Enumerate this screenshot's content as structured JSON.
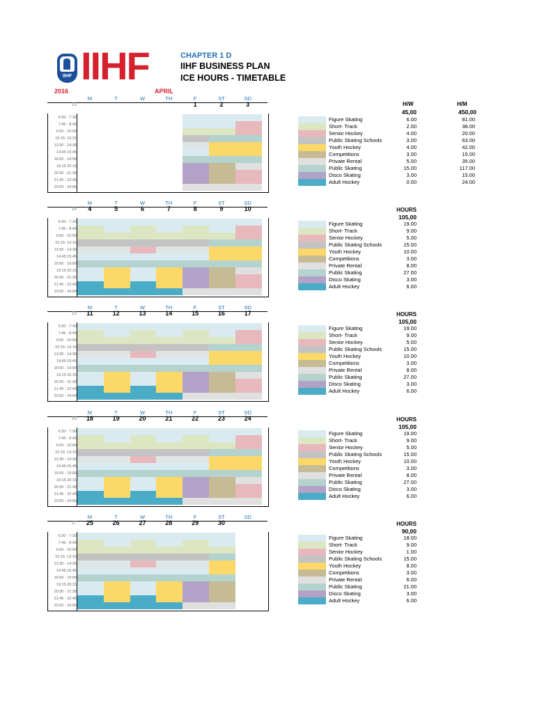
{
  "header": {
    "logo_text": "IIHF",
    "logo_seal_text": "IIHF",
    "chapter": "CHAPTER 1 D",
    "title_line1": "IIHF BUSINESS PLAN",
    "title_line2": "ICE HOURS - TIMETABLE",
    "year": "2016",
    "month": "APRIL"
  },
  "day_headers": [
    "M",
    "T",
    "W",
    "TH",
    "F",
    "ST",
    "SD"
  ],
  "time_slots": [
    "6:30 - 7:30",
    "7:45 - 8:45",
    "9:00 - 10:00",
    "10:15- 13:15",
    "13:30 - 14:30",
    "14:45:15:45",
    "16:00 - 19:00",
    "19:15 20:15",
    "20:30 - 21:30",
    "21:45 - 22:45",
    "23:00 - 24:00"
  ],
  "colors": {
    "FS": "#d9ebf1",
    "ST": "#dde6c2",
    "SH": "#e8b9bc",
    "PSS": "#c3c3c3",
    "YH": "#fcd868",
    "CO": "#c7bb95",
    "PR": "#e0e0e0",
    "PS": "#b4d2ce",
    "DS": "#b3a2c8",
    "AH": "#4aacc6",
    "ALT": "#dfe4e4"
  },
  "legend": [
    {
      "key": "FS",
      "name": "Figure Skating"
    },
    {
      "key": "ST",
      "name": "Short- Track"
    },
    {
      "key": "SH",
      "name": "Senior Hockey"
    },
    {
      "key": "PSS",
      "name": "Public Skating Schools"
    },
    {
      "key": "YH",
      "name": "Youth Hockey"
    },
    {
      "key": "CO",
      "name": "Competitions"
    },
    {
      "key": "PR",
      "name": "Private Rental"
    },
    {
      "key": "PS",
      "name": "Public Skating"
    },
    {
      "key": "DS",
      "name": "Disco Skating"
    },
    {
      "key": "AH",
      "name": "Adult Hockey"
    }
  ],
  "weeks": [
    {
      "week_no": "13",
      "days": [
        "",
        "",
        "",
        "",
        "1",
        "2",
        "3"
      ],
      "show_dow": false,
      "summary_label1": "H/W",
      "summary_label2": "H/M",
      "summary_value1": "45,00",
      "summary_value2": "450,00",
      "hours": [
        "6.00",
        "2.00",
        "4.00",
        "3.00",
        "4.00",
        "3.00",
        "5.00",
        "15.00",
        "3.00",
        "0.00"
      ],
      "hours_month": [
        "81.00",
        "38.00",
        "20.00",
        "63.00",
        "42.00",
        "15.00",
        "35.00",
        "117.00",
        "15.00",
        "24.00"
      ],
      "rows": [
        [
          "",
          "",
          "",
          "",
          "FS",
          "FS",
          "FS"
        ],
        [
          "",
          "",
          "",
          "",
          "FS",
          "FS",
          "SH"
        ],
        [
          "",
          "",
          "",
          "",
          "ST",
          "ST",
          "SH"
        ],
        [
          "",
          "",
          "",
          "",
          "PSS",
          "PS",
          "PS"
        ],
        [
          "",
          "",
          "",
          "",
          "ALT",
          "YH",
          "YH"
        ],
        [
          "",
          "",
          "",
          "",
          "FS",
          "YH",
          "YH"
        ],
        [
          "",
          "",
          "",
          "",
          "PS",
          "PS",
          "PS"
        ],
        [
          "",
          "",
          "",
          "",
          "DS",
          "CO",
          "PR"
        ],
        [
          "",
          "",
          "",
          "",
          "DS",
          "CO",
          "SH"
        ],
        [
          "",
          "",
          "",
          "",
          "DS",
          "CO",
          "SH"
        ],
        [
          "",
          "",
          "",
          "",
          "PR",
          "PR",
          "PR"
        ]
      ]
    },
    {
      "week_no": "14",
      "days": [
        "4",
        "5",
        "6",
        "7",
        "8",
        "9",
        "10"
      ],
      "show_dow": true,
      "summary_label1": "HOURS",
      "summary_value1": "105,00",
      "hours": [
        "19.00",
        "9.00",
        "5.00",
        "15.00",
        "10.00",
        "3.00",
        "8.00",
        "27.00",
        "3.00",
        "6.00"
      ],
      "rows": [
        [
          "FS",
          "FS",
          "FS",
          "FS",
          "FS",
          "FS",
          "FS"
        ],
        [
          "ST",
          "FS",
          "ST",
          "FS",
          "ST",
          "FS",
          "SH"
        ],
        [
          "ST",
          "ST",
          "ST",
          "ST",
          "ST",
          "ST",
          "SH"
        ],
        [
          "PSS",
          "PSS",
          "PSS",
          "PSS",
          "PSS",
          "PS",
          "PS"
        ],
        [
          "ALT",
          "ALT",
          "SH",
          "ALT",
          "ALT",
          "YH",
          "YH"
        ],
        [
          "FS",
          "FS",
          "FS",
          "FS",
          "FS",
          "YH",
          "YH"
        ],
        [
          "PS",
          "PS",
          "PS",
          "PS",
          "PS",
          "PS",
          "PS"
        ],
        [
          "FS",
          "YH",
          "FS",
          "YH",
          "DS",
          "CO",
          "PR"
        ],
        [
          "FS",
          "YH",
          "FS",
          "YH",
          "DS",
          "CO",
          "SH"
        ],
        [
          "AH",
          "YH",
          "AH",
          "YH",
          "DS",
          "CO",
          "SH"
        ],
        [
          "AH",
          "AH",
          "AH",
          "AH",
          "PR",
          "PR",
          "PR"
        ]
      ]
    },
    {
      "week_no": "15",
      "days": [
        "11",
        "12",
        "13",
        "14",
        "15",
        "16",
        "17"
      ],
      "show_dow": true,
      "summary_label1": "HOURS",
      "summary_value1": "105,00",
      "hours": [
        "19.00",
        "9.00",
        "5.00",
        "15.00",
        "10.00",
        "3.00",
        "8.00",
        "27.00",
        "3.00",
        "6.00"
      ],
      "rows": [
        [
          "FS",
          "FS",
          "FS",
          "FS",
          "FS",
          "FS",
          "FS"
        ],
        [
          "ST",
          "FS",
          "ST",
          "FS",
          "ST",
          "FS",
          "SH"
        ],
        [
          "ST",
          "ST",
          "ST",
          "ST",
          "ST",
          "ST",
          "SH"
        ],
        [
          "PSS",
          "PSS",
          "PSS",
          "PSS",
          "PSS",
          "PS",
          "PS"
        ],
        [
          "ALT",
          "ALT",
          "SH",
          "ALT",
          "ALT",
          "YH",
          "YH"
        ],
        [
          "FS",
          "FS",
          "FS",
          "FS",
          "FS",
          "YH",
          "YH"
        ],
        [
          "PS",
          "PS",
          "PS",
          "PS",
          "PS",
          "PS",
          "PS"
        ],
        [
          "FS",
          "YH",
          "FS",
          "YH",
          "DS",
          "CO",
          "PR"
        ],
        [
          "FS",
          "YH",
          "FS",
          "YH",
          "DS",
          "CO",
          "SH"
        ],
        [
          "AH",
          "YH",
          "AH",
          "YH",
          "DS",
          "CO",
          "SH"
        ],
        [
          "AH",
          "AH",
          "AH",
          "AH",
          "PR",
          "PR",
          "PR"
        ]
      ]
    },
    {
      "week_no": "16",
      "days": [
        "18",
        "19",
        "20",
        "21",
        "22",
        "23",
        "24"
      ],
      "show_dow": true,
      "summary_label1": "HOURS",
      "summary_value1": "105,00",
      "hours": [
        "19.00",
        "9.00",
        "5.00",
        "15.00",
        "10.00",
        "3.00",
        "8.00",
        "27.00",
        "3.00",
        "6.00"
      ],
      "rows": [
        [
          "FS",
          "FS",
          "FS",
          "FS",
          "FS",
          "FS",
          "FS"
        ],
        [
          "ST",
          "FS",
          "ST",
          "FS",
          "ST",
          "FS",
          "SH"
        ],
        [
          "ST",
          "ST",
          "ST",
          "ST",
          "ST",
          "ST",
          "SH"
        ],
        [
          "PSS",
          "PSS",
          "PSS",
          "PSS",
          "PSS",
          "PS",
          "PS"
        ],
        [
          "ALT",
          "ALT",
          "SH",
          "ALT",
          "ALT",
          "YH",
          "YH"
        ],
        [
          "FS",
          "FS",
          "FS",
          "FS",
          "FS",
          "YH",
          "YH"
        ],
        [
          "PS",
          "PS",
          "PS",
          "PS",
          "PS",
          "PS",
          "PS"
        ],
        [
          "FS",
          "YH",
          "FS",
          "YH",
          "DS",
          "CO",
          "PR"
        ],
        [
          "FS",
          "YH",
          "FS",
          "YH",
          "DS",
          "CO",
          "SH"
        ],
        [
          "AH",
          "YH",
          "AH",
          "YH",
          "DS",
          "CO",
          "SH"
        ],
        [
          "AH",
          "AH",
          "AH",
          "AH",
          "PR",
          "PR",
          "PR"
        ]
      ]
    },
    {
      "week_no": "17",
      "days": [
        "25",
        "26",
        "27",
        "28",
        "29",
        "30",
        ""
      ],
      "show_dow": true,
      "summary_label1": "HOURS",
      "summary_value1": "90,00",
      "hours": [
        "18.00",
        "9.00",
        "1.00",
        "15.00",
        "8.00",
        "3.00",
        "6.00",
        "21.00",
        "3.00",
        "6.00"
      ],
      "rows": [
        [
          "FS",
          "FS",
          "FS",
          "FS",
          "FS",
          "FS",
          ""
        ],
        [
          "ST",
          "FS",
          "ST",
          "FS",
          "ST",
          "FS",
          ""
        ],
        [
          "ST",
          "ST",
          "ST",
          "ST",
          "ST",
          "ST",
          ""
        ],
        [
          "PSS",
          "PSS",
          "PSS",
          "PSS",
          "PSS",
          "PS",
          ""
        ],
        [
          "ALT",
          "ALT",
          "SH",
          "ALT",
          "ALT",
          "YH",
          ""
        ],
        [
          "FS",
          "FS",
          "FS",
          "FS",
          "FS",
          "YH",
          ""
        ],
        [
          "PS",
          "PS",
          "PS",
          "PS",
          "PS",
          "PS",
          ""
        ],
        [
          "FS",
          "YH",
          "FS",
          "YH",
          "DS",
          "CO",
          ""
        ],
        [
          "FS",
          "YH",
          "FS",
          "YH",
          "DS",
          "CO",
          ""
        ],
        [
          "AH",
          "YH",
          "AH",
          "YH",
          "DS",
          "CO",
          ""
        ],
        [
          "AH",
          "AH",
          "AH",
          "AH",
          "PR",
          "PR",
          ""
        ]
      ]
    }
  ]
}
